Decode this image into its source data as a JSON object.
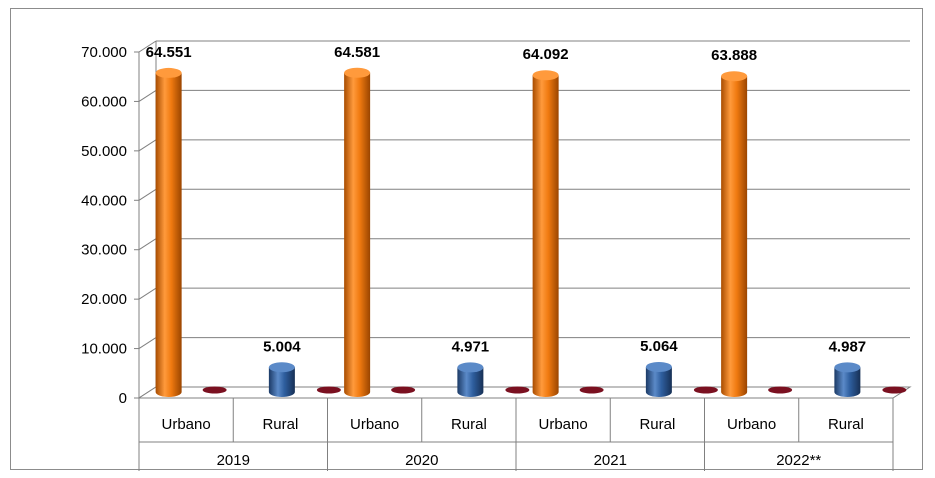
{
  "chart_data": {
    "type": "bar",
    "groups": [
      "2019",
      "2020",
      "2021",
      "2022**"
    ],
    "subcategories": [
      "Urbano",
      "Rural"
    ],
    "series": [
      {
        "values": [
          64551,
          5004,
          64581,
          4971,
          64092,
          5064,
          63888,
          4987
        ],
        "color": "#F07A10"
      },
      {
        "values": [
          null,
          null,
          null,
          null,
          null,
          null,
          null,
          null
        ],
        "color": "#2E5E9E"
      }
    ],
    "value_labels": [
      "64.551",
      "5.004",
      "64.581",
      "4.971",
      "64.092",
      "5.064",
      "63.888",
      "4.987"
    ],
    "y_ticks": [
      "0",
      "10.000",
      "20.000",
      "30.000",
      "40.000",
      "50.000",
      "60.000",
      "70.000"
    ],
    "ylim": [
      0,
      70000
    ],
    "grid": true,
    "bar_colors": {
      "Urbano": "#F07A10",
      "Rural": "#2E5E9E",
      "stub": "#7A1020"
    }
  }
}
